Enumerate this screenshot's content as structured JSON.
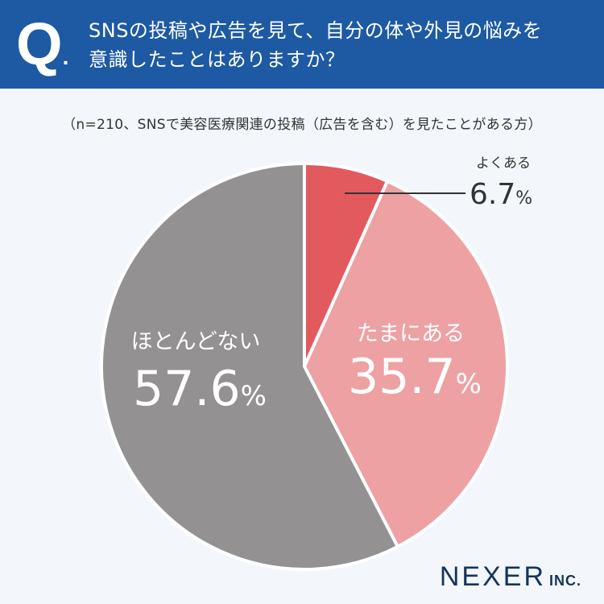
{
  "header": {
    "q_mark": "Q",
    "q_dot": ".",
    "question_line1": "SNSの投稿や広告を見て、自分の体や外見の悩みを",
    "question_line2": "意識したことはありますか？"
  },
  "subtitle": "（n=210、SNSで美容医療関連の投稿（広告を含む）を見たことがある方）",
  "chart_data": {
    "type": "pie",
    "labels": [
      "よくある",
      "たまにある",
      "ほとんどない"
    ],
    "values": [
      6.7,
      35.7,
      57.6
    ],
    "value_labels": [
      "6.7",
      "35.7",
      "57.6"
    ],
    "unit": "%",
    "colors": [
      "#e25a5e",
      "#eda1a3",
      "#939192"
    ],
    "start": "12 o'clock",
    "direction": "clockwise"
  },
  "logo": {
    "name": "NEXER",
    "suffix": "INC."
  }
}
